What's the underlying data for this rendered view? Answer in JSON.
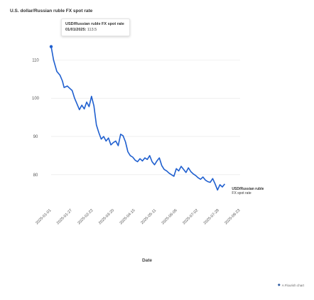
{
  "page": {
    "title": "U.S. dollar/Russian ruble FX spot rate",
    "credit": "A Flourish chart",
    "credit_icon": "flourish-logo-icon"
  },
  "tooltip": {
    "series": "USD/Russian ruble FX spot rate",
    "date_label": "01/01/2025:",
    "value": "113.5"
  },
  "colors": {
    "line": "#1f5fcf",
    "grid": "#e6e6e6",
    "text": "#333333"
  },
  "chart_data": {
    "type": "line",
    "title": "U.S. dollar/Russian ruble FX spot rate",
    "xlabel": "Date",
    "ylabel": "",
    "ylim": [
      75.5,
      113.6
    ],
    "grid": true,
    "yticks": [
      80,
      90,
      100,
      110
    ],
    "xticks": [
      "2025-01-01",
      "2025-01-27",
      "2025-02-22",
      "2025-03-20",
      "2025-04-15",
      "2025-05-11",
      "2025-06-06",
      "2025-07-02",
      "2025-07-28",
      "2025-08-23"
    ],
    "end_label": "USD/Russian ruble FX spot rate",
    "series": [
      {
        "name": "USD/Russian ruble FX spot rate",
        "points": [
          [
            "2025-01-01",
            113.5
          ],
          [
            "2025-01-04",
            110.0
          ],
          [
            "2025-01-08",
            107.0
          ],
          [
            "2025-01-12",
            106.0
          ],
          [
            "2025-01-15",
            104.5
          ],
          [
            "2025-01-17",
            102.8
          ],
          [
            "2025-01-21",
            103.2
          ],
          [
            "2025-01-24",
            102.6
          ],
          [
            "2025-01-27",
            102.0
          ],
          [
            "2025-01-30",
            100.0
          ],
          [
            "2025-02-02",
            98.5
          ],
          [
            "2025-02-05",
            97.0
          ],
          [
            "2025-02-08",
            98.2
          ],
          [
            "2025-02-11",
            97.2
          ],
          [
            "2025-02-14",
            99.0
          ],
          [
            "2025-02-17",
            97.8
          ],
          [
            "2025-02-20",
            100.5
          ],
          [
            "2025-02-23",
            98.0
          ],
          [
            "2025-02-26",
            93.0
          ],
          [
            "2025-03-01",
            91.0
          ],
          [
            "2025-03-04",
            89.3
          ],
          [
            "2025-03-07",
            90.0
          ],
          [
            "2025-03-10",
            88.8
          ],
          [
            "2025-03-13",
            89.6
          ],
          [
            "2025-03-16",
            87.8
          ],
          [
            "2025-03-19",
            88.4
          ],
          [
            "2025-03-22",
            88.8
          ],
          [
            "2025-03-25",
            87.6
          ],
          [
            "2025-03-28",
            90.6
          ],
          [
            "2025-03-31",
            90.2
          ],
          [
            "2025-04-03",
            88.6
          ],
          [
            "2025-04-06",
            86.0
          ],
          [
            "2025-04-09",
            85.0
          ],
          [
            "2025-04-12",
            84.6
          ],
          [
            "2025-04-15",
            83.8
          ],
          [
            "2025-04-18",
            83.4
          ],
          [
            "2025-04-21",
            84.2
          ],
          [
            "2025-04-24",
            83.6
          ],
          [
            "2025-04-27",
            84.4
          ],
          [
            "2025-04-30",
            84.0
          ],
          [
            "2025-05-03",
            85.0
          ],
          [
            "2025-05-06",
            83.4
          ],
          [
            "2025-05-09",
            82.6
          ],
          [
            "2025-05-12",
            83.6
          ],
          [
            "2025-05-15",
            84.4
          ],
          [
            "2025-05-18",
            82.4
          ],
          [
            "2025-05-21",
            81.4
          ],
          [
            "2025-05-24",
            81.0
          ],
          [
            "2025-05-27",
            80.4
          ],
          [
            "2025-05-30",
            80.0
          ],
          [
            "2025-06-02",
            79.6
          ],
          [
            "2025-06-05",
            81.6
          ],
          [
            "2025-06-08",
            81.0
          ],
          [
            "2025-06-11",
            82.2
          ],
          [
            "2025-06-14",
            81.4
          ],
          [
            "2025-06-17",
            80.6
          ],
          [
            "2025-06-20",
            81.8
          ],
          [
            "2025-06-23",
            80.8
          ],
          [
            "2025-06-26",
            80.2
          ],
          [
            "2025-06-29",
            79.8
          ],
          [
            "2025-07-02",
            79.2
          ],
          [
            "2025-07-05",
            78.8
          ],
          [
            "2025-07-08",
            79.4
          ],
          [
            "2025-07-11",
            78.6
          ],
          [
            "2025-07-14",
            78.2
          ],
          [
            "2025-07-17",
            78.0
          ],
          [
            "2025-07-20",
            79.0
          ],
          [
            "2025-07-23",
            77.6
          ],
          [
            "2025-07-26",
            76.0
          ],
          [
            "2025-07-29",
            77.4
          ],
          [
            "2025-08-01",
            76.8
          ],
          [
            "2025-08-04",
            77.6
          ]
        ]
      }
    ]
  }
}
